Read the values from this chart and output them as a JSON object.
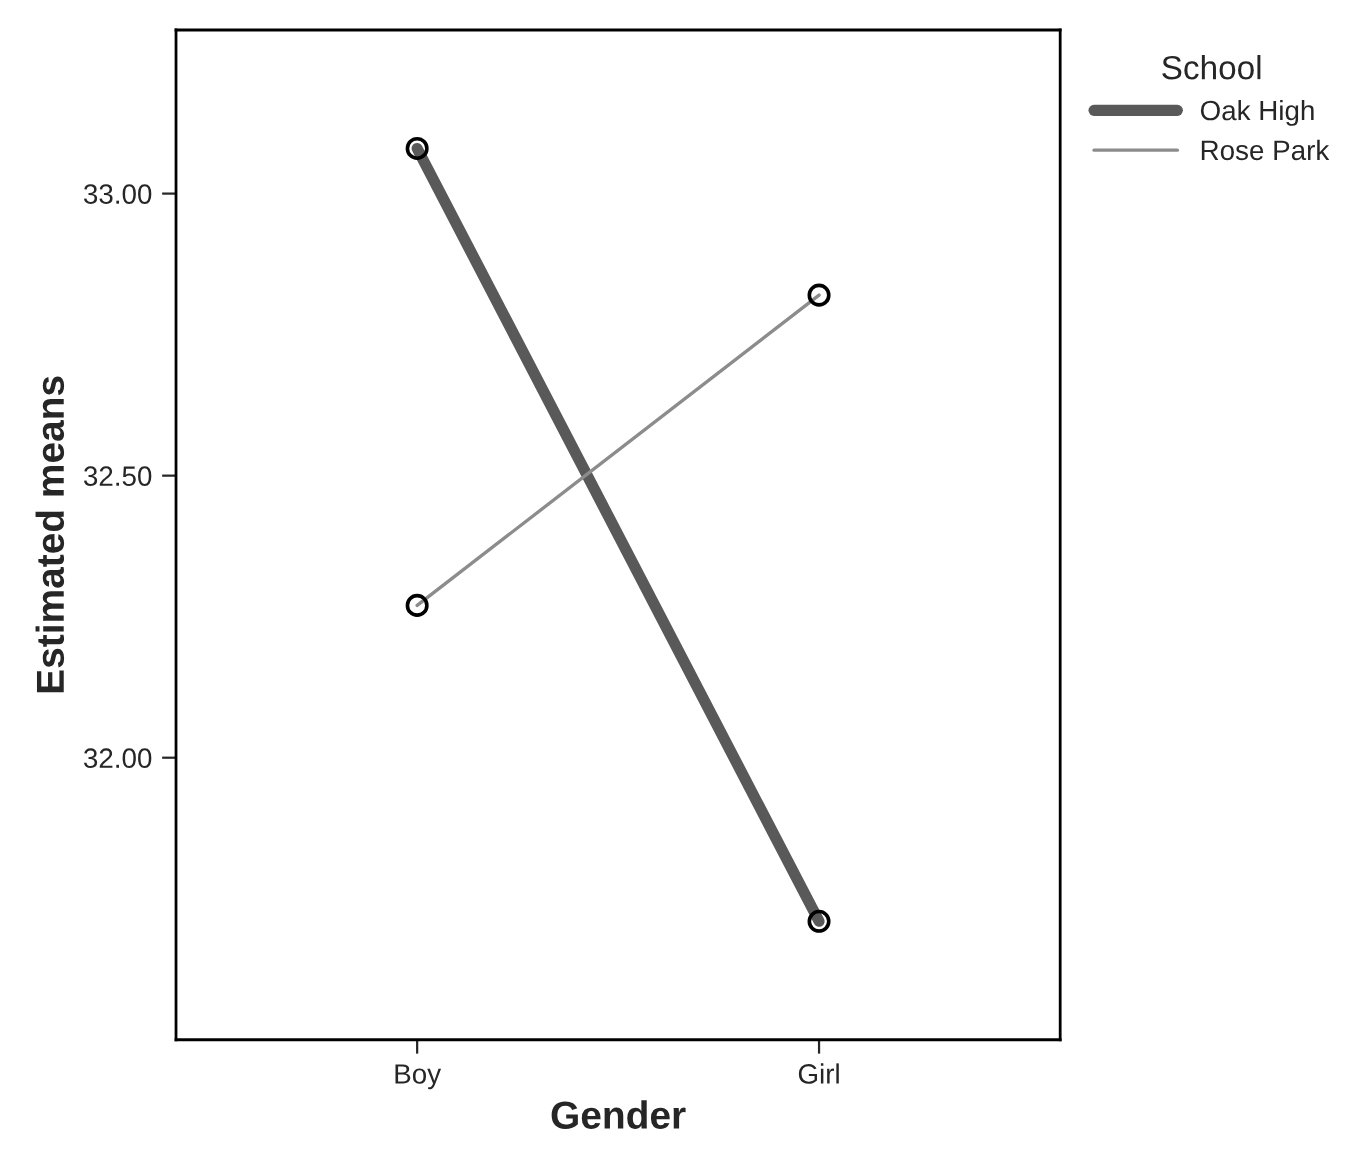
{
  "chart_data": {
    "type": "line",
    "xlabel": "Gender",
    "ylabel": "Estimated means",
    "legend_title": "School",
    "categories": [
      "Boy",
      "Girl"
    ],
    "series": [
      {
        "name": "Oak High",
        "color": "#595959",
        "values": [
          33.08,
          31.71
        ]
      },
      {
        "name": "Rose Park",
        "color": "#8c8c8c",
        "values": [
          32.27,
          32.82
        ]
      }
    ],
    "ylim": [
      31.5,
      33.29
    ],
    "yticks": [
      {
        "value": 32.0,
        "label": "32.00"
      },
      {
        "value": 32.5,
        "label": "32.50"
      },
      {
        "value": 33.0,
        "label": "33.00"
      }
    ],
    "marker": "circle",
    "grid": false,
    "legend": "top right"
  }
}
